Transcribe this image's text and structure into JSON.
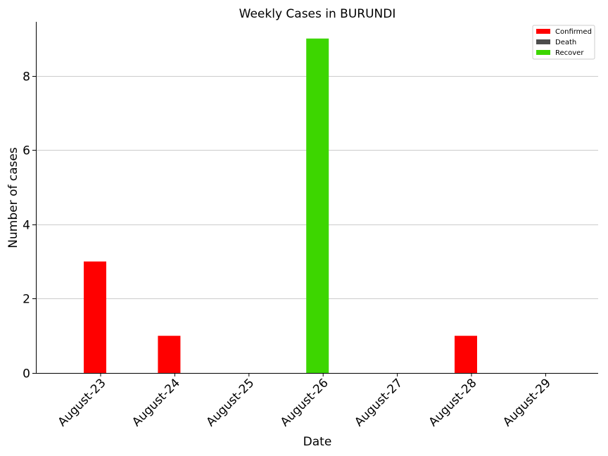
{
  "chart_data": {
    "type": "bar",
    "title": "Weekly Cases in BURUNDI",
    "xlabel": "Date",
    "ylabel": "Number of cases",
    "categories": [
      "August-23",
      "August-24",
      "August-25",
      "August-26",
      "August-27",
      "August-28",
      "August-29"
    ],
    "series": [
      {
        "name": "Confirmed",
        "color": "#ff0000",
        "values": [
          3,
          1,
          0,
          0,
          0,
          1,
          0
        ]
      },
      {
        "name": "Death",
        "color": "#4d4d4d",
        "values": [
          0,
          0,
          0,
          0,
          0,
          0,
          0
        ]
      },
      {
        "name": "Recover",
        "color": "#3dd600",
        "values": [
          0,
          0,
          0,
          9,
          0,
          0,
          0
        ]
      }
    ],
    "ylim": [
      0,
      9.45
    ],
    "yticks": [
      0,
      2,
      4,
      6,
      8
    ],
    "grid": "horizontal",
    "legend_position": "top-right"
  }
}
